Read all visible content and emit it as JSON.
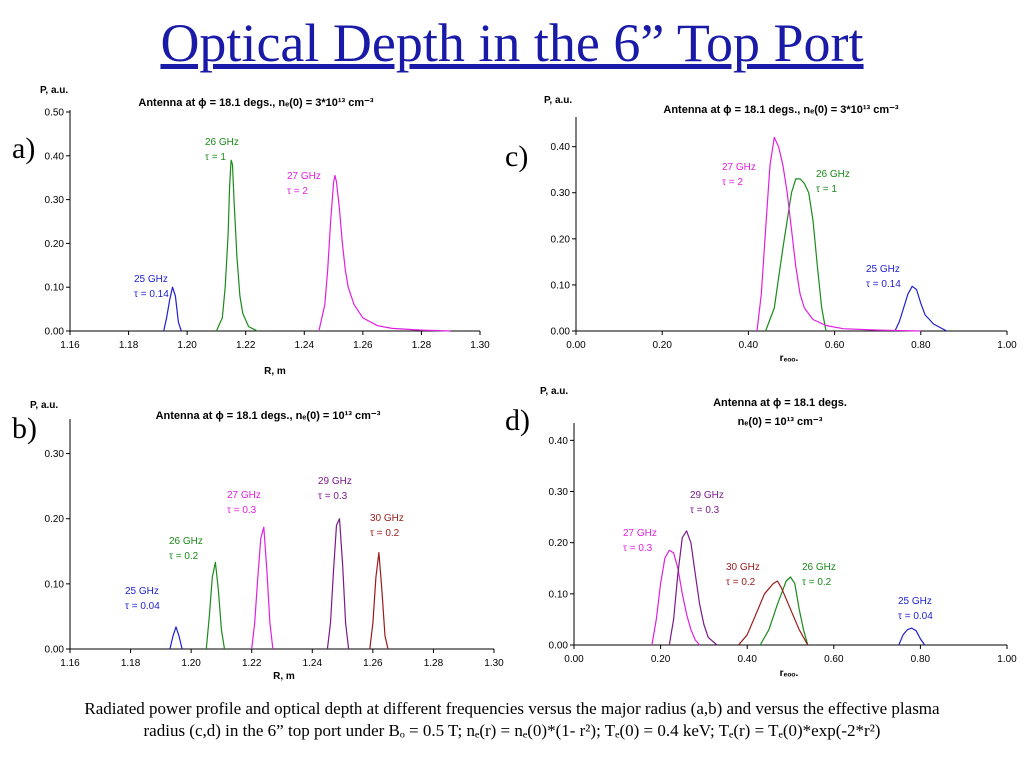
{
  "page": {
    "title": "Optical Depth in the 6” Top Port",
    "caption_line1": "Radiated power profile and optical depth at different frequencies versus the major radius (a,b) and versus the effective plasma",
    "caption_line2": "radius (c,d) in the 6” top port under Bₒ = 0.5 T; nₑ(r) = nₑ(0)*(1- r²); Tₑ(0) = 0.4 keV; Tₑ(r) = Tₑ(0)*exp(-2*r²)"
  },
  "chart_data": [
    {
      "panel": "a)",
      "type": "line",
      "title": "Antenna at ϕ = 18.1 degs., nₑ(0) = 3*10¹³ cm⁻³",
      "xlabel": "R, m",
      "ylabel": "P, a.u.",
      "xlim": [
        1.16,
        1.3
      ],
      "ylim": [
        0,
        0.5
      ],
      "xticks": [
        "1.16",
        "1.18",
        "1.20",
        "1.22",
        "1.24",
        "1.26",
        "1.28",
        "1.30"
      ],
      "yticks": [
        "0.00",
        "0.10",
        "0.20",
        "0.30",
        "0.40",
        "0.50"
      ],
      "grid": false,
      "series": [
        {
          "name": "25 GHz",
          "annotation": [
            "25 GHz",
            "τ = 0.14"
          ],
          "color": "#1f1fd0",
          "x": [
            1.192,
            1.193,
            1.194,
            1.195,
            1.196,
            1.197,
            1.198
          ],
          "y": [
            0.0,
            0.03,
            0.07,
            0.1,
            0.08,
            0.02,
            0.0
          ]
        },
        {
          "name": "26 GHz",
          "annotation": [
            "26 GHz",
            "τ = 1"
          ],
          "color": "#1a8a1a",
          "x": [
            1.21,
            1.212,
            1.213,
            1.214,
            1.2145,
            1.215,
            1.2155,
            1.216,
            1.217,
            1.218,
            1.219,
            1.221,
            1.224
          ],
          "y": [
            0.0,
            0.03,
            0.1,
            0.22,
            0.33,
            0.39,
            0.38,
            0.3,
            0.17,
            0.08,
            0.04,
            0.01,
            0.0
          ]
        },
        {
          "name": "27 GHz",
          "annotation": [
            "27 GHz",
            "τ = 2"
          ],
          "color": "#e020e0",
          "x": [
            1.245,
            1.247,
            1.248,
            1.249,
            1.25,
            1.2505,
            1.251,
            1.252,
            1.253,
            1.254,
            1.255,
            1.257,
            1.26,
            1.265,
            1.27,
            1.28,
            1.29
          ],
          "y": [
            0.0,
            0.06,
            0.14,
            0.25,
            0.34,
            0.355,
            0.34,
            0.28,
            0.2,
            0.14,
            0.1,
            0.06,
            0.03,
            0.012,
            0.006,
            0.002,
            0.0
          ]
        }
      ]
    },
    {
      "panel": "b)",
      "type": "line",
      "title": "Antenna at ϕ = 18.1 degs., nₑ(0) = 10¹³ cm⁻³",
      "xlabel": "R, m",
      "ylabel": "P, a.u.",
      "xlim": [
        1.16,
        1.3
      ],
      "ylim": [
        0,
        0.35
      ],
      "xticks": [
        "1.16",
        "1.18",
        "1.20",
        "1.22",
        "1.24",
        "1.26",
        "1.28",
        "1.30"
      ],
      "yticks": [
        "0.00",
        "0.10",
        "0.20",
        "0.30"
      ],
      "grid": false,
      "series": [
        {
          "name": "25 GHz",
          "annotation": [
            "25 GHz",
            "τ = 0.04"
          ],
          "color": "#1f1fd0",
          "x": [
            1.193,
            1.194,
            1.195,
            1.196,
            1.197
          ],
          "y": [
            0.0,
            0.02,
            0.034,
            0.02,
            0.0
          ]
        },
        {
          "name": "26 GHz",
          "annotation": [
            "26 GHz",
            "τ = 0.2"
          ],
          "color": "#1a8a1a",
          "x": [
            1.205,
            1.206,
            1.207,
            1.208,
            1.209,
            1.21,
            1.211
          ],
          "y": [
            0.0,
            0.05,
            0.11,
            0.133,
            0.09,
            0.03,
            0.0
          ]
        },
        {
          "name": "27 GHz",
          "annotation": [
            "27 GHz",
            "τ = 0.3"
          ],
          "color": "#e020e0",
          "x": [
            1.22,
            1.221,
            1.222,
            1.223,
            1.224,
            1.225,
            1.226,
            1.227
          ],
          "y": [
            0.0,
            0.04,
            0.11,
            0.17,
            0.187,
            0.12,
            0.04,
            0.0
          ]
        },
        {
          "name": "29 GHz",
          "annotation": [
            "29 GHz",
            "τ = 0.3"
          ],
          "color": "#7a1a8a",
          "x": [
            1.245,
            1.246,
            1.247,
            1.248,
            1.249,
            1.25,
            1.251,
            1.252
          ],
          "y": [
            0.0,
            0.04,
            0.12,
            0.19,
            0.2,
            0.13,
            0.04,
            0.0
          ]
        },
        {
          "name": "30 GHz",
          "annotation": [
            "30 GHz",
            "τ = 0.2"
          ],
          "color": "#9a1a1a",
          "x": [
            1.259,
            1.26,
            1.261,
            1.262,
            1.263,
            1.264,
            1.265
          ],
          "y": [
            0.0,
            0.04,
            0.11,
            0.148,
            0.09,
            0.02,
            0.0
          ]
        }
      ]
    },
    {
      "panel": "c)",
      "type": "line",
      "title": "Antenna at ϕ = 18.1 degs., nₑ(0) = 3*10¹³ cm⁻³",
      "xlabel": "rₑₒₒ.",
      "ylabel": "P, a.u.",
      "xlim": [
        0,
        1
      ],
      "ylim": [
        0,
        0.46
      ],
      "xticks": [
        "0.00",
        "0.20",
        "0.40",
        "0.60",
        "0.80",
        "1.00"
      ],
      "yticks": [
        "0.00",
        "0.10",
        "0.20",
        "0.30",
        "0.40"
      ],
      "grid": false,
      "series": [
        {
          "name": "25 GHz",
          "annotation": [
            "25 GHz",
            "τ = 0.14"
          ],
          "color": "#1f1fd0",
          "x": [
            0.74,
            0.75,
            0.76,
            0.77,
            0.78,
            0.79,
            0.8,
            0.81,
            0.83,
            0.86
          ],
          "y": [
            0.0,
            0.02,
            0.05,
            0.08,
            0.097,
            0.09,
            0.06,
            0.035,
            0.015,
            0.0
          ]
        },
        {
          "name": "26 GHz",
          "annotation": [
            "26 GHz",
            "τ = 1"
          ],
          "color": "#1a8a1a",
          "x": [
            0.44,
            0.46,
            0.48,
            0.5,
            0.51,
            0.52,
            0.53,
            0.54,
            0.55,
            0.56,
            0.57,
            0.58
          ],
          "y": [
            0.0,
            0.05,
            0.18,
            0.3,
            0.33,
            0.33,
            0.32,
            0.3,
            0.24,
            0.14,
            0.05,
            0.0
          ]
        },
        {
          "name": "27 GHz",
          "annotation": [
            "27 GHz",
            "τ = 2"
          ],
          "color": "#e020e0",
          "x": [
            0.42,
            0.43,
            0.44,
            0.45,
            0.46,
            0.47,
            0.48,
            0.49,
            0.5,
            0.51,
            0.52,
            0.53,
            0.55,
            0.58,
            0.62,
            0.7,
            0.8
          ],
          "y": [
            0.0,
            0.08,
            0.22,
            0.36,
            0.42,
            0.4,
            0.36,
            0.3,
            0.22,
            0.14,
            0.08,
            0.05,
            0.025,
            0.012,
            0.005,
            0.002,
            0.0
          ]
        }
      ]
    },
    {
      "panel": "d)",
      "type": "line",
      "title": "Antenna at ϕ = 18.1 degs.",
      "title2": "nₑ(0) = 10¹³ cm⁻³",
      "xlabel": "rₑₒₒ.",
      "ylabel": "P, a.u.",
      "xlim": [
        0,
        1
      ],
      "ylim": [
        0,
        0.43
      ],
      "xticks": [
        "0.00",
        "0.20",
        "0.40",
        "0.60",
        "0.80",
        "1.00"
      ],
      "yticks": [
        "0.00",
        "0.10",
        "0.20",
        "0.30",
        "0.40"
      ],
      "grid": false,
      "series": [
        {
          "name": "25 GHz",
          "annotation": [
            "25 GHz",
            "τ = 0.04"
          ],
          "color": "#1f1fd0",
          "x": [
            0.75,
            0.76,
            0.77,
            0.78,
            0.79,
            0.8,
            0.81
          ],
          "y": [
            0.0,
            0.02,
            0.03,
            0.033,
            0.028,
            0.012,
            0.0
          ]
        },
        {
          "name": "26 GHz",
          "annotation": [
            "26 GHz",
            "τ = 0.2"
          ],
          "color": "#1a8a1a",
          "x": [
            0.43,
            0.45,
            0.47,
            0.49,
            0.5,
            0.51,
            0.52,
            0.53,
            0.54
          ],
          "y": [
            0.0,
            0.03,
            0.08,
            0.125,
            0.133,
            0.12,
            0.07,
            0.03,
            0.0
          ]
        },
        {
          "name": "27 GHz",
          "annotation": [
            "27 GHz",
            "τ = 0.3"
          ],
          "color": "#e020e0",
          "x": [
            0.18,
            0.19,
            0.2,
            0.21,
            0.22,
            0.23,
            0.24,
            0.25,
            0.26,
            0.27,
            0.28,
            0.29
          ],
          "y": [
            0.0,
            0.05,
            0.12,
            0.17,
            0.185,
            0.18,
            0.15,
            0.1,
            0.06,
            0.03,
            0.01,
            0.0
          ]
        },
        {
          "name": "29 GHz",
          "annotation": [
            "29 GHz",
            "τ = 0.3"
          ],
          "color": "#7a1a8a",
          "x": [
            0.22,
            0.23,
            0.24,
            0.25,
            0.26,
            0.27,
            0.28,
            0.29,
            0.3,
            0.31,
            0.33
          ],
          "y": [
            0.0,
            0.05,
            0.14,
            0.21,
            0.223,
            0.2,
            0.14,
            0.08,
            0.04,
            0.015,
            0.0
          ]
        },
        {
          "name": "30 GHz",
          "annotation": [
            "30 GHz",
            "τ = 0.2"
          ],
          "color": "#9a1a1a",
          "x": [
            0.38,
            0.4,
            0.42,
            0.44,
            0.46,
            0.47,
            0.48,
            0.5,
            0.52,
            0.54
          ],
          "y": [
            0.0,
            0.02,
            0.06,
            0.1,
            0.12,
            0.125,
            0.11,
            0.07,
            0.03,
            0.0
          ]
        }
      ]
    }
  ]
}
